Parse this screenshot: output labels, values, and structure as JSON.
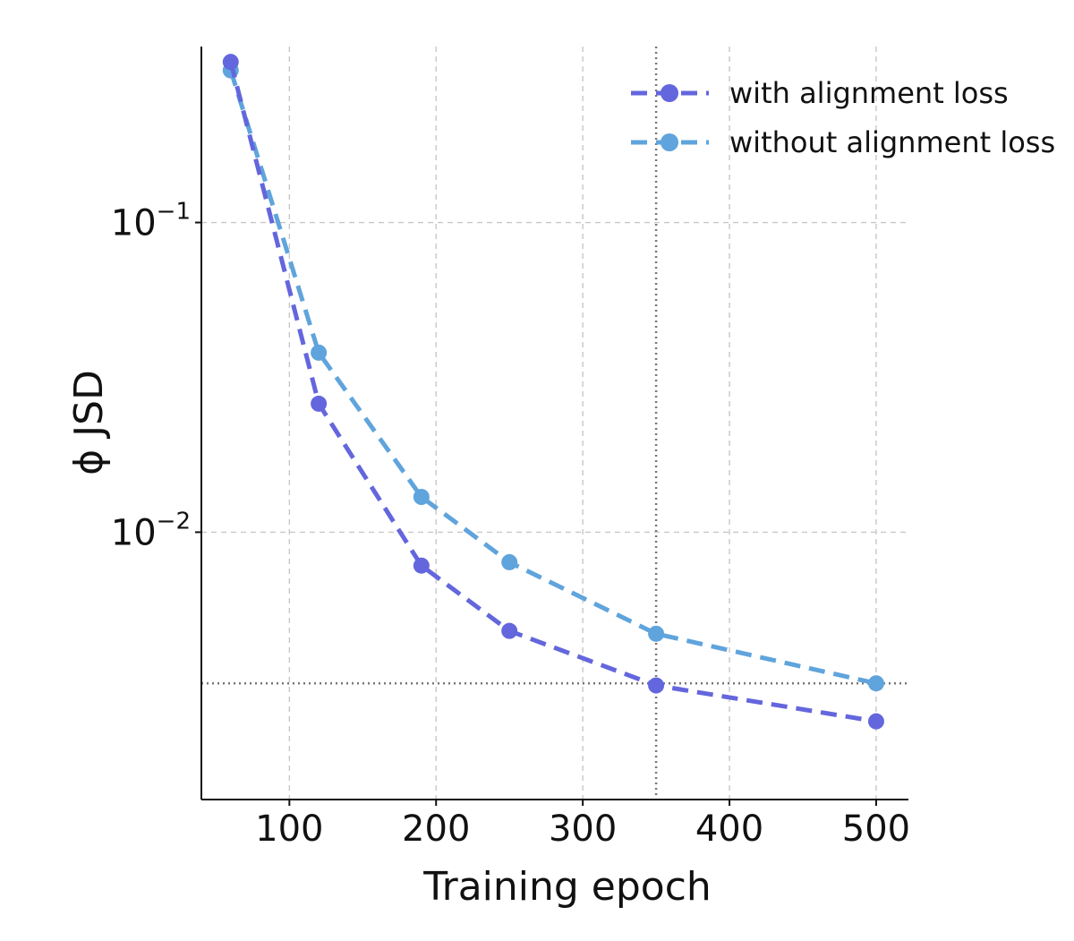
{
  "chart_data": {
    "type": "line",
    "title": "",
    "xlabel": "Training epoch",
    "ylabel": "ϕ JSD",
    "xlim": [
      40,
      522
    ],
    "ylim": [
      0.00137,
      0.37
    ],
    "yscale": "log",
    "xticks": [
      100,
      200,
      300,
      400,
      500
    ],
    "xtick_labels": [
      "100",
      "200",
      "300",
      "400",
      "500"
    ],
    "yticks": [
      0.1,
      0.01
    ],
    "ytick_labels": [
      {
        "base": "10",
        "exp": "−1"
      },
      {
        "base": "10",
        "exp": "−2"
      }
    ],
    "grid": true,
    "legend_position": "top-right",
    "x": [
      60,
      120,
      190,
      250,
      350,
      500
    ],
    "series": [
      {
        "name": "with alignment loss",
        "color": "#6466dd",
        "values": [
          0.33,
          0.026,
          0.0078,
          0.0048,
          0.0032,
          0.00245
        ]
      },
      {
        "name": "without alignment loss",
        "color": "#5fa4dc",
        "values": [
          0.31,
          0.038,
          0.013,
          0.008,
          0.0047,
          0.00325
        ]
      }
    ],
    "reference_lines": {
      "vertical_x": 350,
      "horizontal_y": 0.00325,
      "color": "#777777"
    }
  }
}
